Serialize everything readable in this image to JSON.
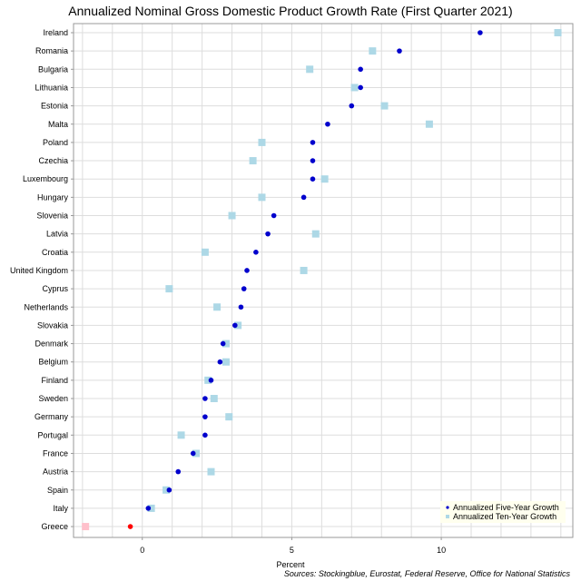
{
  "chart_data": {
    "type": "scatter",
    "title": "Annualized Nominal Gross Domestic Product Growth Rate (First Quarter 2021)",
    "xlabel": "Percent",
    "source": "Sources: Stockingblue, Eurostat, Federal Reserve, Office for National Statistics",
    "xlim": [
      -2.3,
      14.4
    ],
    "xticks": [
      "0",
      "5",
      "10"
    ],
    "xtick_values": [
      0,
      5,
      10
    ],
    "grid": true,
    "legend_position": "bottom-right",
    "categories": [
      "Ireland",
      "Romania",
      "Bulgaria",
      "Lithuania",
      "Estonia",
      "Malta",
      "Poland",
      "Czechia",
      "Luxembourg",
      "Hungary",
      "Slovenia",
      "Latvia",
      "Croatia",
      "United Kingdom",
      "Cyprus",
      "Netherlands",
      "Slovakia",
      "Denmark",
      "Belgium",
      "Finland",
      "Sweden",
      "Germany",
      "Portugal",
      "France",
      "Austria",
      "Spain",
      "Italy",
      "Greece"
    ],
    "series": [
      {
        "name": "Annualized Five-Year Growth",
        "marker": "circle",
        "color": "#0000cd",
        "negative_color": "#ff0000",
        "values": [
          11.3,
          8.6,
          7.3,
          7.3,
          7.0,
          6.2,
          5.7,
          5.7,
          5.7,
          5.4,
          4.4,
          4.2,
          3.8,
          3.5,
          3.4,
          3.3,
          3.1,
          2.7,
          2.6,
          2.3,
          2.1,
          2.1,
          2.1,
          1.7,
          1.2,
          0.9,
          0.2,
          -0.4
        ]
      },
      {
        "name": "Annualized Ten-Year Growth",
        "marker": "square",
        "color": "#add8e6",
        "negative_color": "#ffc0cb",
        "values": [
          13.9,
          7.7,
          5.6,
          7.1,
          8.1,
          9.6,
          4.0,
          3.7,
          6.1,
          4.0,
          3.0,
          5.8,
          2.1,
          5.4,
          0.9,
          2.5,
          3.2,
          2.8,
          2.8,
          2.2,
          2.4,
          2.9,
          1.3,
          1.8,
          2.3,
          0.8,
          0.3,
          -1.9
        ]
      }
    ]
  }
}
